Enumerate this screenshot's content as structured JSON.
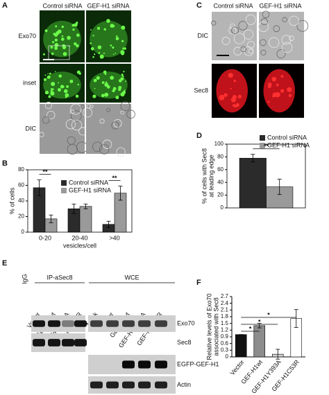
{
  "panels": {
    "a": "A",
    "b": "B",
    "c": "C",
    "d": "D",
    "e": "E",
    "f": "F"
  },
  "panel_a": {
    "columns": [
      "Control siRNA",
      "GEF-H1 siRNA"
    ],
    "rows": [
      "Exo70",
      "inset",
      "DIC"
    ]
  },
  "panel_c": {
    "columns": [
      "Control siRNA",
      "GEF-H1 siRNA"
    ],
    "rows": [
      "DIC",
      "Sec8"
    ]
  },
  "panel_e": {
    "igg": "IgG",
    "groups": [
      "IP-aSec8",
      "WCE"
    ],
    "lanes_ip": [
      "Vector",
      "GEF-H1wt",
      "GEF-H1Y393A",
      "GEF-H1C53R"
    ],
    "lanes_wce": [
      "Mock",
      "Vector",
      "GEF-H1wt",
      "GEF-H1Y393A",
      "GEF-H1C53R"
    ],
    "blots": [
      "Exo70",
      "Sec8",
      "EGFP-GEF-H1",
      "Actin"
    ]
  },
  "chart_data": [
    {
      "type": "bar",
      "ylabel": [
        "% of cells"
      ],
      "xlabel": "vesicles/cell",
      "categories": [
        "0-20",
        "20-40",
        ">40"
      ],
      "series": [
        {
          "name": "Control siRNA",
          "color": "#2b2b2b",
          "values": [
            57,
            30,
            10
          ],
          "errors": [
            10,
            6,
            4
          ]
        },
        {
          "name": "GEF-H1 siRNA",
          "color": "#9a9a9a",
          "values": [
            17,
            33,
            50
          ],
          "errors": [
            5,
            3,
            9
          ]
        }
      ],
      "ylim": [
        0,
        80
      ],
      "yticks": [
        0,
        20,
        40,
        60,
        80
      ],
      "annotations": [
        "**",
        "**"
      ]
    },
    {
      "type": "bar",
      "ylabel": [
        "% of cells with Sec8",
        "at leading edge"
      ],
      "categories": [
        null
      ],
      "series": [
        {
          "name": "Control siRNA",
          "color": "#2b2b2b",
          "values": [
            78
          ],
          "errors": [
            6
          ]
        },
        {
          "name": "GEF-H1 siRNA",
          "color": "#9a9a9a",
          "values": [
            33
          ],
          "errors": [
            12
          ]
        }
      ],
      "ylim": [
        0,
        100
      ],
      "yticks": [
        0,
        20,
        40,
        60,
        80,
        100
      ],
      "annotations": [
        "**"
      ]
    },
    {
      "type": "bar",
      "ylabel": [
        "Relative levels of Exo70",
        "associated with Sec8"
      ],
      "categories": [
        "Vector",
        "GEF-H1wt",
        "GEF-H1Y393A",
        "GEF-H1C53R"
      ],
      "values": [
        1.0,
        1.4,
        0.12,
        1.72
      ],
      "errors": [
        0,
        0.1,
        0.22,
        0.4
      ],
      "colors": [
        "#111111",
        "#8c8c8c",
        "#d0d0d0",
        "#ffffff"
      ],
      "ylim": [
        0,
        2.7
      ],
      "yticks": [
        0,
        0.3,
        0.6,
        0.9,
        1.2,
        1.5,
        1.8,
        2.1,
        2.4,
        2.7
      ],
      "annotations": [
        "*",
        "*",
        "*"
      ]
    }
  ]
}
